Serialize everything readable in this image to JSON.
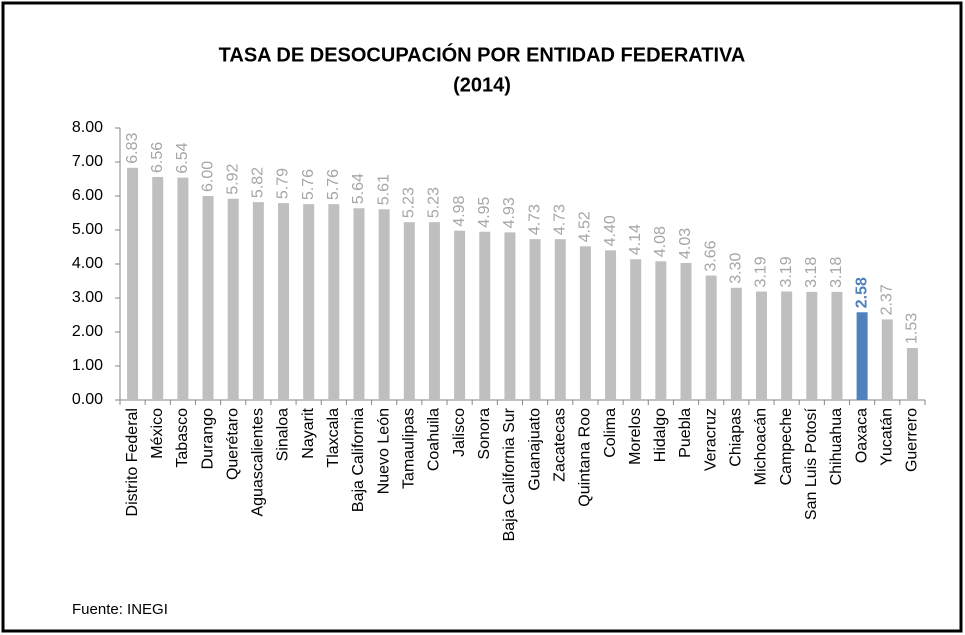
{
  "chart_data": {
    "type": "bar",
    "title": "TASA DE DESOCUPACIÓN POR ENTIDAD FEDERATIVA",
    "subtitle": "(2014)",
    "source": "Fuente: INEGI",
    "categories": [
      "Distrito Federal",
      "México",
      "Tabasco",
      "Durango",
      "Querétaro",
      "Aguascalientes",
      "Sinaloa",
      "Nayarit",
      "Tlaxcala",
      "Baja California",
      "Nuevo León",
      "Tamaulipas",
      "Coahuila",
      "Jalisco",
      "Sonora",
      "Baja California Sur",
      "Guanajuato",
      "Zacatecas",
      "Quintana Roo",
      "Colima",
      "Morelos",
      "Hidalgo",
      "Puebla",
      "Veracruz",
      "Chiapas",
      "Michoacán",
      "Campeche",
      "San Luis Potosí",
      "Chihuahua",
      "Oaxaca",
      "Yucatán",
      "Guerrero"
    ],
    "values": [
      6.83,
      6.56,
      6.54,
      6.0,
      5.92,
      5.82,
      5.79,
      5.76,
      5.76,
      5.64,
      5.61,
      5.23,
      5.23,
      4.98,
      4.95,
      4.93,
      4.73,
      4.73,
      4.52,
      4.4,
      4.14,
      4.08,
      4.03,
      3.66,
      3.3,
      3.19,
      3.19,
      3.18,
      3.18,
      2.58,
      2.37,
      1.53
    ],
    "value_labels": [
      "6.83",
      "6.56",
      "6.54",
      "6.00",
      "5.92",
      "5.82",
      "5.79",
      "5.76",
      "5.76",
      "5.64",
      "5.61",
      "5.23",
      "5.23",
      "4.98",
      "4.95",
      "4.93",
      "4.73",
      "4.73",
      "4.52",
      "4.40",
      "4.14",
      "4.08",
      "4.03",
      "3.66",
      "3.30",
      "3.19",
      "3.19",
      "3.18",
      "3.18",
      "2.58",
      "2.37",
      "1.53"
    ],
    "color": "#bfbfbf",
    "highlight": {
      "category": "Oaxaca",
      "color": "#4f81bd"
    },
    "ylim": [
      0,
      8
    ],
    "yticks": [
      {
        "value": 0,
        "label": "0.00"
      },
      {
        "value": 1,
        "label": "1.00"
      },
      {
        "value": 2,
        "label": "2.00"
      },
      {
        "value": 3,
        "label": "3.00"
      },
      {
        "value": 4,
        "label": "4.00"
      },
      {
        "value": 5,
        "label": "5.00"
      },
      {
        "value": 6,
        "label": "6.00"
      },
      {
        "value": 7,
        "label": "7.00"
      },
      {
        "value": 8,
        "label": "8.00"
      }
    ],
    "grid": false
  }
}
